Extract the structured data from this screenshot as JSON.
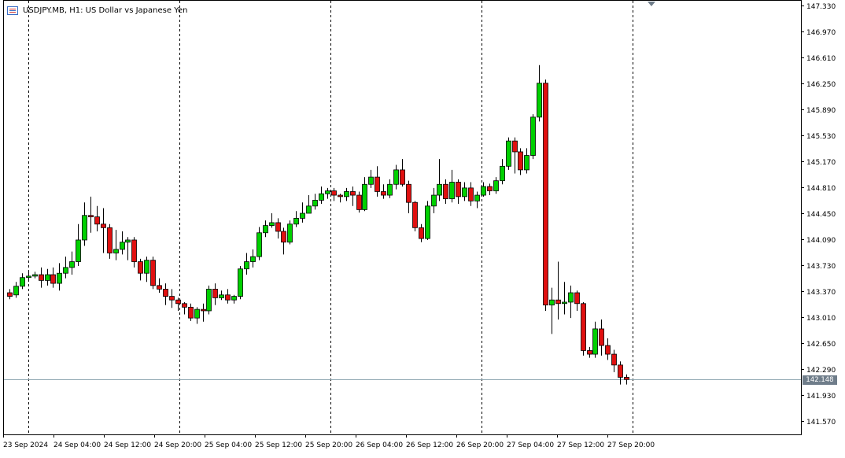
{
  "header": {
    "symbol_line": "USDJPY.MB, H1:  US Dollar vs Japanese Yen",
    "icon": "chart-window-icon"
  },
  "current_price": {
    "label": "142.148",
    "value": 142.148,
    "line_color": "#8fa7b2",
    "tag_color": "#6f7d8a"
  },
  "colors": {
    "bull": "#00d000",
    "bear": "#e01010",
    "wick": "#000000",
    "grid": "#000000",
    "axis_text": "#000000"
  },
  "chart_data": {
    "type": "candlestick",
    "symbol": "USDJPY.MB",
    "timeframe": "H1",
    "ylim": [
      141.39,
      147.39
    ],
    "y_ticks": [
      "147.330",
      "146.970",
      "146.610",
      "146.250",
      "145.890",
      "145.530",
      "145.170",
      "144.810",
      "144.450",
      "144.090",
      "143.730",
      "143.370",
      "143.010",
      "142.650",
      "142.290",
      "141.930",
      "141.570"
    ],
    "x_tick_labels": [
      "23 Sep 2024",
      "24 Sep 04:00",
      "24 Sep 12:00",
      "24 Sep 20:00",
      "25 Sep 04:00",
      "25 Sep 12:00",
      "25 Sep 20:00",
      "26 Sep 04:00",
      "26 Sep 12:00",
      "26 Sep 20:00",
      "27 Sep 04:00",
      "27 Sep 12:00",
      "27 Sep 20:00"
    ],
    "candles": [
      [
        143.35,
        143.3,
        143.4,
        143.26
      ],
      [
        143.32,
        143.44,
        143.5,
        143.28
      ],
      [
        143.44,
        143.56,
        143.62,
        143.4
      ],
      [
        143.56,
        143.58,
        143.66,
        143.52
      ],
      [
        143.58,
        143.6,
        143.64,
        143.55
      ],
      [
        143.6,
        143.52,
        143.7,
        143.42
      ],
      [
        143.52,
        143.6,
        143.68,
        143.45
      ],
      [
        143.6,
        143.48,
        143.7,
        143.42
      ],
      [
        143.48,
        143.62,
        143.76,
        143.38
      ],
      [
        143.62,
        143.7,
        143.85,
        143.55
      ],
      [
        143.7,
        143.78,
        143.92,
        143.6
      ],
      [
        143.78,
        144.08,
        144.3,
        143.72
      ],
      [
        144.08,
        144.42,
        144.6,
        144.0
      ],
      [
        144.42,
        144.4,
        144.68,
        144.18
      ],
      [
        144.4,
        144.3,
        144.55,
        144.2
      ],
      [
        144.3,
        144.25,
        144.52,
        143.9
      ],
      [
        144.25,
        143.9,
        144.3,
        143.82
      ],
      [
        143.9,
        143.95,
        144.22,
        143.8
      ],
      [
        143.95,
        144.05,
        144.2,
        143.88
      ],
      [
        144.05,
        144.08,
        144.12,
        143.8
      ],
      [
        144.08,
        143.78,
        144.12,
        143.7
      ],
      [
        143.78,
        143.62,
        143.82,
        143.52
      ],
      [
        143.62,
        143.8,
        143.85,
        143.5
      ],
      [
        143.8,
        143.45,
        143.85,
        143.4
      ],
      [
        143.45,
        143.4,
        143.55,
        143.35
      ],
      [
        143.4,
        143.3,
        143.48,
        143.18
      ],
      [
        143.3,
        143.25,
        143.4,
        143.14
      ],
      [
        143.25,
        143.2,
        143.28,
        143.1
      ],
      [
        143.2,
        143.15,
        143.22,
        143.05
      ],
      [
        143.15,
        143.0,
        143.2,
        142.96
      ],
      [
        143.0,
        143.12,
        143.15,
        142.92
      ],
      [
        143.12,
        143.1,
        143.2,
        142.95
      ],
      [
        143.1,
        143.4,
        143.45,
        143.05
      ],
      [
        143.4,
        143.28,
        143.48,
        143.18
      ],
      [
        143.28,
        143.32,
        143.38,
        143.25
      ],
      [
        143.32,
        143.25,
        143.4,
        143.2
      ],
      [
        143.25,
        143.3,
        143.32,
        143.2
      ],
      [
        143.3,
        143.68,
        143.72,
        143.26
      ],
      [
        143.68,
        143.78,
        143.9,
        143.6
      ],
      [
        143.78,
        143.85,
        143.95,
        143.7
      ],
      [
        143.85,
        144.18,
        144.26,
        143.8
      ],
      [
        144.18,
        144.28,
        144.35,
        144.12
      ],
      [
        144.28,
        144.32,
        144.45,
        144.25
      ],
      [
        144.32,
        144.2,
        144.38,
        144.1
      ],
      [
        144.2,
        144.05,
        144.25,
        143.88
      ],
      [
        144.05,
        144.3,
        144.35,
        144.02
      ],
      [
        144.3,
        144.38,
        144.48,
        144.26
      ],
      [
        144.38,
        144.45,
        144.6,
        144.32
      ],
      [
        144.45,
        144.55,
        144.7,
        144.45
      ],
      [
        144.55,
        144.63,
        144.72,
        144.5
      ],
      [
        144.63,
        144.72,
        144.82,
        144.58
      ],
      [
        144.72,
        144.76,
        144.8,
        144.65
      ],
      [
        144.76,
        144.7,
        144.8,
        144.62
      ],
      [
        144.7,
        144.68,
        144.72,
        144.6
      ],
      [
        144.68,
        144.75,
        144.8,
        144.62
      ],
      [
        144.75,
        144.7,
        144.82,
        144.55
      ],
      [
        144.7,
        144.5,
        144.75,
        144.46
      ],
      [
        144.5,
        144.85,
        144.95,
        144.48
      ],
      [
        144.85,
        144.95,
        145.05,
        144.8
      ],
      [
        144.95,
        144.75,
        145.1,
        144.68
      ],
      [
        144.75,
        144.7,
        144.85,
        144.65
      ],
      [
        144.7,
        144.85,
        144.92,
        144.66
      ],
      [
        144.85,
        145.05,
        145.12,
        144.78
      ],
      [
        145.05,
        144.85,
        145.2,
        144.82
      ],
      [
        144.85,
        144.6,
        144.9,
        144.45
      ],
      [
        144.6,
        144.25,
        144.62,
        144.2
      ],
      [
        144.25,
        144.1,
        144.3,
        144.05
      ],
      [
        144.1,
        144.55,
        144.62,
        144.08
      ],
      [
        144.55,
        144.7,
        144.8,
        144.45
      ],
      [
        144.7,
        144.85,
        145.2,
        144.62
      ],
      [
        144.85,
        144.65,
        144.92,
        144.58
      ],
      [
        144.65,
        144.88,
        145.05,
        144.6
      ],
      [
        144.88,
        144.68,
        144.92,
        144.58
      ],
      [
        144.68,
        144.8,
        144.88,
        144.62
      ],
      [
        144.8,
        144.62,
        144.88,
        144.55
      ],
      [
        144.62,
        144.7,
        144.75,
        144.52
      ],
      [
        144.7,
        144.82,
        144.88,
        144.68
      ],
      [
        144.82,
        144.76,
        144.86,
        144.7
      ],
      [
        144.76,
        144.9,
        144.95,
        144.72
      ],
      [
        144.9,
        145.1,
        145.2,
        144.85
      ],
      [
        145.1,
        145.45,
        145.5,
        145.05
      ],
      [
        145.45,
        145.3,
        145.5,
        145.0
      ],
      [
        145.3,
        145.05,
        145.35,
        144.98
      ],
      [
        145.05,
        145.25,
        145.35,
        145.0
      ],
      [
        145.25,
        145.78,
        145.82,
        145.2
      ],
      [
        145.78,
        146.25,
        146.5,
        145.72
      ],
      [
        146.25,
        143.18,
        146.3,
        143.1
      ],
      [
        143.18,
        143.25,
        143.42,
        142.78
      ],
      [
        143.25,
        143.2,
        143.78,
        142.98
      ],
      [
        143.2,
        143.22,
        143.5,
        143.05
      ],
      [
        143.22,
        143.35,
        143.45,
        143.0
      ],
      [
        143.35,
        143.2,
        143.38,
        143.1
      ],
      [
        143.2,
        142.55,
        143.22,
        142.48
      ],
      [
        142.55,
        142.5,
        142.6,
        142.45
      ],
      [
        142.5,
        142.85,
        142.95,
        142.45
      ],
      [
        142.85,
        142.62,
        142.98,
        142.48
      ],
      [
        142.62,
        142.5,
        142.72,
        142.42
      ],
      [
        142.5,
        142.35,
        142.56,
        142.25
      ],
      [
        142.35,
        142.18,
        142.4,
        142.08
      ],
      [
        142.18,
        142.15,
        142.22,
        142.08
      ]
    ]
  }
}
